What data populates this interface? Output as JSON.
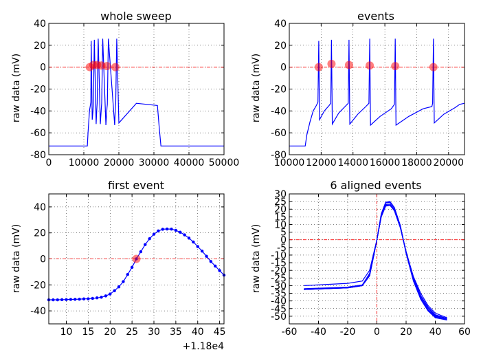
{
  "chart_data": [
    {
      "id": "whole",
      "type": "line",
      "title": "whole sweep",
      "ylabel": "raw data (mV)",
      "xlim": [
        0,
        50000
      ],
      "ylim": [
        -80,
        40
      ],
      "xticks": [
        0,
        10000,
        20000,
        30000,
        40000,
        50000
      ],
      "yticks": [
        -80,
        -60,
        -40,
        -20,
        0,
        20,
        40
      ],
      "threshold": 0,
      "grid": true,
      "trace_color": "#0000ff",
      "marker_color": "#ff0000",
      "series": [
        {
          "x": [
            0,
            11000,
            11200,
            11600,
            11800,
            12000,
            12100,
            12400,
            12600,
            12700,
            13000,
            13500,
            13700,
            13800,
            14100,
            14700,
            15000,
            15100,
            15400,
            16300,
            16600,
            16700,
            17000,
            18800,
            19000,
            19100,
            19400,
            20000,
            25000,
            31000,
            31500,
            32000,
            35000,
            50000
          ],
          "y": [
            -72,
            -72,
            -60,
            -40,
            -36,
            -32,
            24,
            -48,
            -40,
            -33,
            25,
            -52,
            -38,
            -33,
            26,
            -52,
            -37,
            -33,
            26,
            -53,
            -37,
            -34,
            26,
            -53,
            -36,
            -33,
            26,
            -51,
            -33,
            -35,
            -55,
            -72,
            -72,
            -72
          ]
        }
      ],
      "markers": {
        "x": [
          11700,
          12700,
          13800,
          15000,
          16600,
          19000
        ],
        "y": [
          0,
          2,
          2,
          1.5,
          1,
          0
        ]
      }
    },
    {
      "id": "events",
      "type": "line",
      "title": "events",
      "ylabel": "raw data (mV)",
      "xlim": [
        10000,
        21000
      ],
      "ylim": [
        -80,
        40
      ],
      "xticks": [
        10000,
        12000,
        14000,
        16000,
        18000,
        20000
      ],
      "yticks": [
        -80,
        -60,
        -40,
        -20,
        0,
        20,
        40
      ],
      "threshold": 0,
      "grid": true,
      "trace_color": "#0000ff",
      "marker_color": "#ff0000",
      "series": [
        {
          "x": [
            10000,
            11000,
            11100,
            11300,
            11500,
            11700,
            11800,
            11850,
            11900,
            12200,
            12500,
            12600,
            12650,
            12700,
            13100,
            13500,
            13700,
            13750,
            13800,
            14300,
            14800,
            15000,
            15050,
            15100,
            15700,
            16400,
            16600,
            16650,
            16700,
            17500,
            18400,
            18950,
            19000,
            19050,
            19100,
            19700,
            20400,
            20700,
            21000
          ],
          "y": [
            -72,
            -72,
            -62,
            -50,
            -40,
            -35,
            -32,
            24,
            -48,
            -40,
            -35,
            -33,
            25,
            -52,
            -42,
            -36,
            -33,
            25,
            -52,
            -43,
            -36,
            -33,
            26,
            -53,
            -45,
            -38,
            -34,
            26,
            -53,
            -45,
            -38,
            -36,
            -33,
            26,
            -51,
            -43,
            -37,
            -34,
            -33
          ]
        }
      ],
      "markers": {
        "x": [
          11850,
          12650,
          13750,
          15050,
          16650,
          19050
        ],
        "y": [
          0,
          3,
          2,
          1.5,
          1,
          0
        ]
      }
    },
    {
      "id": "first",
      "type": "line",
      "title": "first event",
      "ylabel": "raw data (mV)",
      "xlim": [
        6,
        46
      ],
      "ylim": [
        -50,
        50
      ],
      "xticks": [
        10,
        15,
        20,
        25,
        30,
        35,
        40,
        45
      ],
      "yticks": [
        -40,
        -20,
        0,
        20,
        40
      ],
      "offset_label": "+1.18e4",
      "threshold": 0,
      "grid": true,
      "trace_color": "#0000ff",
      "marker_color": "#ff0000",
      "series": [
        {
          "x": [
            6,
            7,
            8,
            9,
            10,
            11,
            12,
            13,
            14,
            15,
            16,
            17,
            18,
            19,
            20,
            21,
            22,
            23,
            24,
            25,
            26,
            27,
            28,
            29,
            30,
            31,
            32,
            33,
            34,
            35,
            36,
            37,
            38,
            39,
            40,
            41,
            42,
            43,
            44,
            45,
            46
          ],
          "y": [
            -31.5,
            -31.5,
            -31.5,
            -31.4,
            -31.3,
            -31.2,
            -31.1,
            -31.0,
            -30.8,
            -30.7,
            -30.4,
            -30.0,
            -29.5,
            -28.5,
            -27.0,
            -24.5,
            -21.5,
            -17.5,
            -12.0,
            -6.5,
            0,
            5.5,
            11.0,
            15.5,
            19.0,
            21.5,
            22.8,
            23.0,
            22.9,
            22.0,
            20.5,
            18.5,
            16.0,
            13.0,
            9.5,
            6.0,
            2.0,
            -2.0,
            -5.5,
            -9.0,
            -12.5
          ]
        }
      ],
      "markers": {
        "x": [
          26
        ],
        "y": [
          0
        ]
      }
    },
    {
      "id": "aligned",
      "type": "line",
      "title": "6 aligned events",
      "ylabel": "raw data (mV)",
      "xlim": [
        -60,
        60
      ],
      "ylim": [
        -55,
        30
      ],
      "xticks": [
        -60,
        -40,
        -20,
        0,
        20,
        40,
        60
      ],
      "yticks": [
        -50,
        -45,
        -40,
        -35,
        -30,
        -25,
        -20,
        -15,
        -10,
        -5,
        0,
        5,
        10,
        15,
        20,
        25,
        30
      ],
      "threshold": 0,
      "vline": 0,
      "grid": true,
      "series": [
        {
          "color": "#ff9f6a",
          "x": [
            -50,
            -20,
            -10,
            -5,
            -3,
            0,
            3,
            6,
            9,
            12,
            16,
            20,
            25,
            30,
            35,
            40,
            48
          ],
          "y": [
            -30.0,
            -28.5,
            -27.0,
            -20.0,
            -12.0,
            0,
            15.0,
            22.0,
            22.5,
            19.0,
            8.0,
            -8.0,
            -24.0,
            -35.0,
            -43.0,
            -48.0,
            -51.0
          ]
        },
        {
          "color": "#c9a0dc",
          "x": [
            -50,
            -20,
            -10,
            -5,
            -3,
            0,
            3,
            6,
            9,
            12,
            16,
            20,
            25,
            30,
            35,
            40,
            48
          ],
          "y": [
            -32.0,
            -31.0,
            -29.5,
            -22.0,
            -13.0,
            0,
            16.0,
            23.0,
            23.5,
            19.5,
            8.5,
            -7.5,
            -24.5,
            -36.5,
            -44.0,
            -49.0,
            -51.5
          ]
        },
        {
          "color": "#ff6b6b",
          "x": [
            -50,
            -20,
            -10,
            -5,
            -3,
            0,
            3,
            6,
            9,
            12,
            16,
            20,
            25,
            30,
            35,
            40,
            48
          ],
          "y": [
            -32.5,
            -31.0,
            -29.5,
            -22.5,
            -13.5,
            0,
            15.5,
            22.5,
            22.8,
            19.0,
            8.0,
            -8.0,
            -25.0,
            -37.0,
            -44.5,
            -49.5,
            -51.5
          ]
        },
        {
          "color": "#7fb3ff",
          "x": [
            -50,
            -20,
            -10,
            -5,
            -3,
            0,
            3,
            6,
            9,
            12,
            16,
            20,
            25,
            30,
            35,
            40,
            48
          ],
          "y": [
            -32.5,
            -31.5,
            -30.0,
            -23.0,
            -14.0,
            0,
            16.5,
            24.0,
            24.5,
            20.5,
            9.0,
            -8.5,
            -26.0,
            -38.0,
            -45.5,
            -50.0,
            -52.0
          ]
        },
        {
          "color": "#7fd9a6",
          "x": [
            -50,
            -20,
            -10,
            -5,
            -3,
            0,
            3,
            6,
            9,
            12,
            16,
            20,
            25,
            30,
            35,
            40,
            48
          ],
          "y": [
            -32.5,
            -31.5,
            -30.0,
            -23.5,
            -14.5,
            0,
            17.0,
            24.5,
            25.0,
            21.0,
            9.5,
            -8.5,
            -26.5,
            -38.5,
            -46.0,
            -50.5,
            -52.5
          ]
        },
        {
          "color": "#33cccc",
          "x": [
            -50,
            -20,
            -10,
            -5,
            -3,
            0,
            3,
            6,
            9,
            12,
            16,
            20,
            25,
            30,
            35,
            40,
            48
          ],
          "y": [
            -32.5,
            -31.5,
            -30.0,
            -23.5,
            -14.5,
            0,
            17.0,
            24.5,
            25.0,
            21.0,
            9.5,
            -9.0,
            -27.0,
            -39.0,
            -46.5,
            -51.0,
            -52.5
          ]
        }
      ]
    }
  ]
}
